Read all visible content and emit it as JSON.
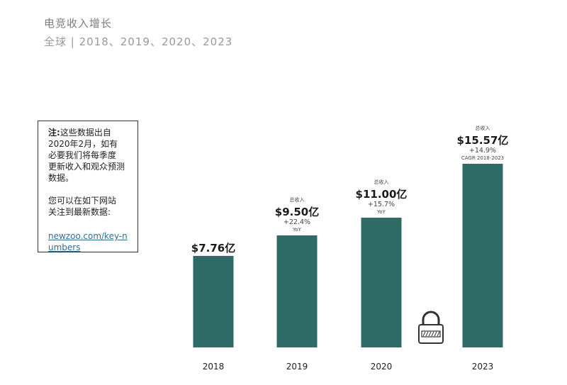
{
  "header": {
    "title": "电竞收入增长",
    "subtitle": "全球 | 2018、2019、2020、2023"
  },
  "note": {
    "label": "注:",
    "line1": "这些数据出自",
    "line2": "2020年2月，如有",
    "line3": "必要我们将每季度",
    "line4": "更新收入和观众预测",
    "line5": "数据。",
    "line6": "您可以在如下网站",
    "line7": "关注到最新数据:",
    "link": "newzoo.com/key-numbers"
  },
  "colors": {
    "bar": "#2e6b67",
    "text": "#222222",
    "muted": "#7d7d7d"
  },
  "chart_data": {
    "type": "bar",
    "title": "电竞收入增长",
    "subtitle": "全球 | 2018、2019、2020、2023",
    "categories": [
      "2018",
      "2019",
      "2020",
      "2023"
    ],
    "values": [
      7.76,
      9.5,
      11.0,
      15.57
    ],
    "unit": "亿美元",
    "value_labels": [
      "$7.76亿",
      "$9.50亿",
      "$11.00亿",
      "$15.57亿"
    ],
    "top_labels": [
      "",
      "总收入",
      "总收入",
      "总收入"
    ],
    "growth_labels": [
      "",
      "+22.4%",
      "+15.7%",
      "+14.9%"
    ],
    "growth_type": [
      "",
      "YoY",
      "YoY",
      "CAGR 2018-2023"
    ],
    "ylim": [
      0,
      15.57
    ],
    "grid": false,
    "legend": "none",
    "annotation_icon": "padlock-icon"
  }
}
